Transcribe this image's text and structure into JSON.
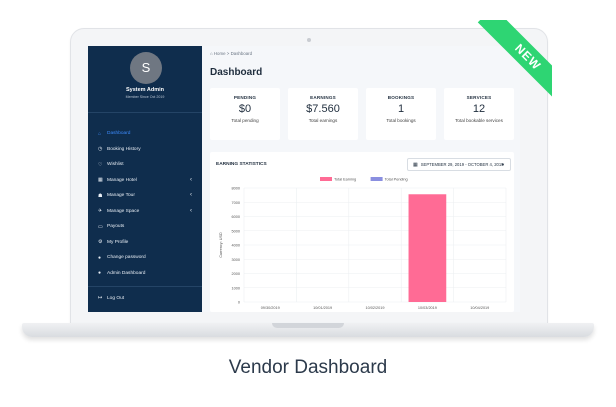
{
  "caption": "Vendor Dashboard",
  "ribbon": "NEW",
  "user": {
    "initial": "S",
    "name": "System Admin",
    "since": "Member Since Oct 2019"
  },
  "menu": [
    {
      "label": "Dashboard",
      "icon": "home-icon",
      "active": true
    },
    {
      "label": "Booking History",
      "icon": "clock-icon"
    },
    {
      "label": "Wishlist",
      "icon": "heart-icon"
    },
    {
      "label": "Manage Hotel",
      "icon": "building-icon",
      "submenu": true
    },
    {
      "label": "Manage Tour",
      "icon": "user-icon",
      "submenu": true
    },
    {
      "label": "Manage Space",
      "icon": "plane-icon",
      "submenu": true
    },
    {
      "label": "Payouts",
      "icon": "credit-card-icon"
    },
    {
      "label": "My Profile",
      "icon": "cogs-icon"
    },
    {
      "label": "Change password",
      "icon": "lock-icon"
    },
    {
      "label": "Admin Dashboard",
      "icon": "lock-icon"
    }
  ],
  "logout": "Log Out",
  "breadcrumb": "Home > Dashboard",
  "page_title": "Dashboard",
  "cards": [
    {
      "label": "PENDING",
      "value": "$0",
      "desc": "Total pending"
    },
    {
      "label": "EARNINGS",
      "value": "$7.560",
      "desc": "Total earnings"
    },
    {
      "label": "BOOKINGS",
      "value": "1",
      "desc": "Total bookings"
    },
    {
      "label": "SERVICES",
      "value": "12",
      "desc": "Total bookable services"
    }
  ],
  "chart": {
    "title": "EARNING STATISTICS",
    "date_range": "SEPTEMBER 29, 2019 - OCTOBER 4, 2019"
  },
  "chart_data": {
    "type": "bar",
    "categories": [
      "09/30/2019",
      "10/01/2019",
      "10/02/2019",
      "10/03/2019",
      "10/04/2019"
    ],
    "series": [
      {
        "name": "Total Earning",
        "values": [
          0,
          0,
          0,
          7560,
          0
        ]
      },
      {
        "name": "Total Pending",
        "values": [
          0,
          0,
          0,
          0,
          0
        ]
      }
    ],
    "ylabel": "Currency: USD",
    "ylim": [
      0,
      8000
    ],
    "yticks": [
      "0",
      "1000",
      "2000",
      "3000",
      "4000",
      "5000",
      "6000",
      "7000",
      "8000"
    ],
    "legend": "top",
    "grid": true,
    "colors": {
      "Total Earning": "#ff6b95",
      "Total Pending": "#8a8fe0"
    }
  }
}
